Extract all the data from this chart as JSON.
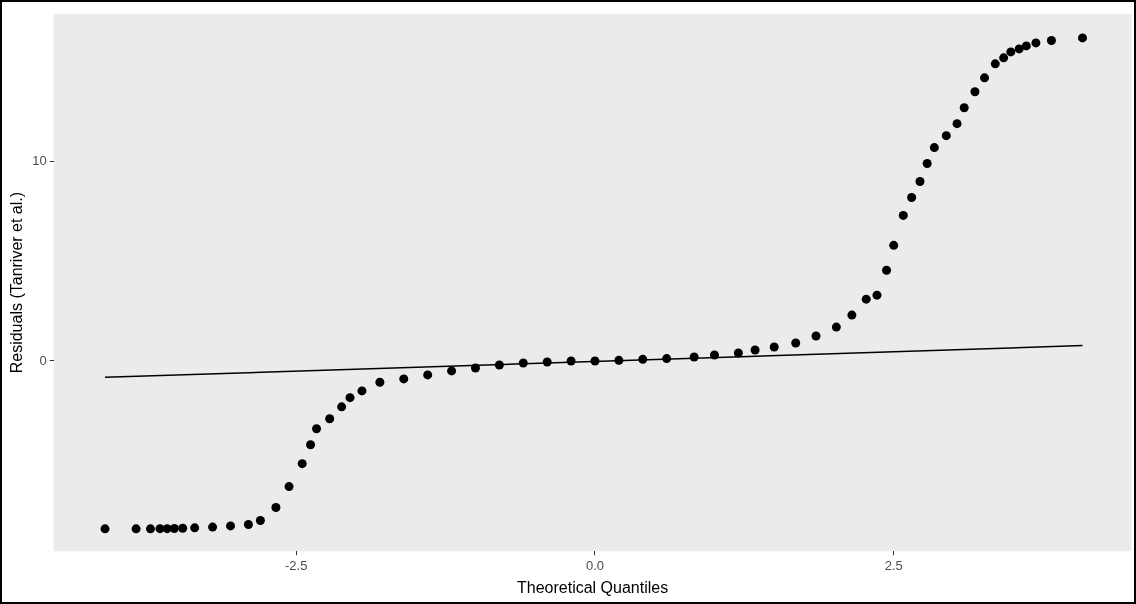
{
  "chart_data": {
    "type": "scatter",
    "xlabel": "Theoretical Quantiles",
    "ylabel": "Residuals (Tanriver et al.)",
    "xlim": [
      -4.53,
      4.49
    ],
    "ylim": [
      -9.54,
      17.4
    ],
    "xticks": [
      {
        "value": -2.5,
        "label": "-2.5"
      },
      {
        "value": 0,
        "label": "0.0"
      },
      {
        "value": 2.5,
        "label": "2.5"
      }
    ],
    "yticks": [
      0,
      10
    ],
    "grid": false,
    "legend": false,
    "series": [
      {
        "color": "#000000",
        "marker": "circle",
        "x": [
          -4.1,
          -3.84,
          -3.72,
          -3.64,
          -3.58,
          -3.52,
          -3.45,
          -3.35,
          -3.2,
          -3.05,
          -2.9,
          -2.8,
          -2.67,
          -2.56,
          -2.45,
          -2.38,
          -2.33,
          -2.22,
          -2.12,
          -2.05,
          -1.95,
          -1.8,
          -1.6,
          -1.4,
          -1.2,
          -1.0,
          -0.8,
          -0.6,
          -0.4,
          -0.2,
          0,
          0.2,
          0.4,
          0.6,
          0.83,
          1.0,
          1.2,
          1.34,
          1.5,
          1.68,
          1.85,
          2.02,
          2.15,
          2.27,
          2.36,
          2.44,
          2.5,
          2.58,
          2.65,
          2.72,
          2.78,
          2.84,
          2.94,
          3.03,
          3.09,
          3.18,
          3.26,
          3.35,
          3.42,
          3.48,
          3.55,
          3.61,
          3.69,
          3.82,
          4.08
        ],
        "values": [
          -8.42,
          -8.42,
          -8.42,
          -8.41,
          -8.41,
          -8.4,
          -8.39,
          -8.37,
          -8.33,
          -8.27,
          -8.2,
          -8.0,
          -7.35,
          -6.3,
          -5.15,
          -4.2,
          -3.4,
          -2.9,
          -2.3,
          -1.84,
          -1.5,
          -1.07,
          -0.9,
          -0.7,
          -0.5,
          -0.35,
          -0.2,
          -0.1,
          -0.05,
          0,
          0,
          0.03,
          0.08,
          0.12,
          0.2,
          0.3,
          0.4,
          0.55,
          0.7,
          0.9,
          1.25,
          1.7,
          2.3,
          3.1,
          3.3,
          4.55,
          5.8,
          7.3,
          8.2,
          9.0,
          9.9,
          10.7,
          11.3,
          11.9,
          12.7,
          13.5,
          14.2,
          14.9,
          15.2,
          15.5,
          15.65,
          15.8,
          15.95,
          16.07,
          16.2
        ]
      },
      {
        "type": "line",
        "marker": "none",
        "color": "#000000",
        "x": [
          -4.1,
          4.08
        ],
        "values": [
          -0.82,
          0.77
        ]
      }
    ]
  }
}
